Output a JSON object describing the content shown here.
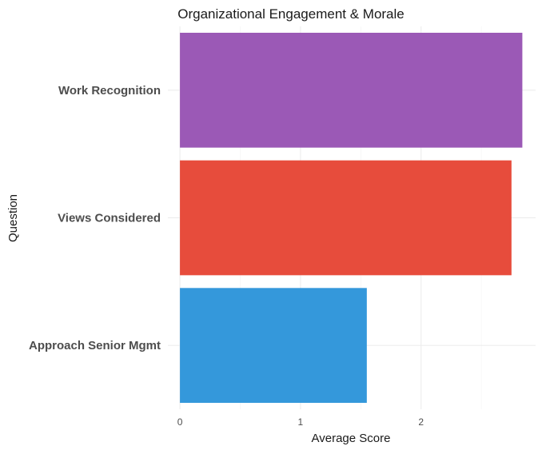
{
  "chart_data": {
    "type": "bar",
    "orientation": "horizontal",
    "title": "Organizational Engagement & Morale",
    "xlabel": "Average Score",
    "ylabel": "Question",
    "categories": [
      "Work Recognition",
      "Views Considered",
      "Approach Senior Mgmt"
    ],
    "values": [
      2.84,
      2.75,
      1.55
    ],
    "colors": [
      "#9b59b6",
      "#e74c3c",
      "#3498db"
    ],
    "xticks": [
      0,
      1,
      2
    ],
    "xlim": [
      -0.1,
      2.95
    ],
    "grid": true,
    "legend": "none"
  }
}
